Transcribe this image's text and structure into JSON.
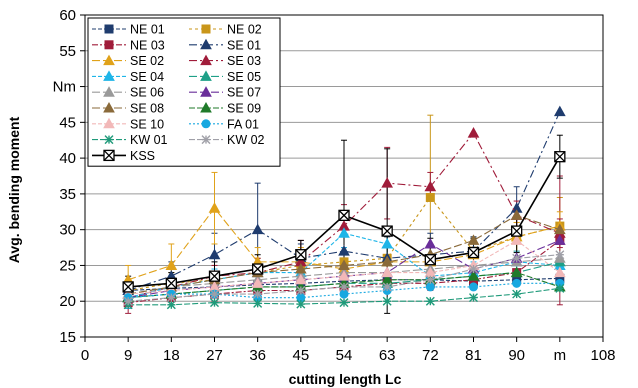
{
  "chart_data": {
    "type": "line",
    "xlabel": "cutting length Lc",
    "ylabel": "Avg. bending moment",
    "xlim": [
      0,
      108
    ],
    "ylim": [
      15,
      60
    ],
    "x_ticks": [
      "0",
      "9",
      "18",
      "27",
      "36",
      "45",
      "54",
      "63",
      "72",
      "81",
      "90",
      "m",
      "108"
    ],
    "y_ticks": [
      "15",
      "20",
      "25",
      "30",
      "35",
      "40",
      "45",
      "Nm",
      "55",
      "60"
    ],
    "grid": "horizontal",
    "legend_position": "top-left",
    "x": [
      9,
      18,
      27,
      36,
      45,
      54,
      63,
      72,
      81,
      90,
      99
    ],
    "series": [
      {
        "name": "NE 01",
        "color": "#1f3c6e",
        "marker": "square",
        "dash": "4 2",
        "values": [
          21.5,
          21.8,
          22.0,
          22.3,
          22.5,
          22.8,
          23.0,
          23.0,
          22.8,
          23.0,
          23.2
        ]
      },
      {
        "name": "NE 02",
        "color": "#c9961a",
        "marker": "square",
        "dash": "3 3",
        "values": [
          21.5,
          22.5,
          23.0,
          24.0,
          25.0,
          25.5,
          26.0,
          34.5,
          27.0,
          29.0,
          30.5
        ],
        "error": [
          1.5,
          1.5,
          2,
          2,
          2,
          2,
          3,
          11.5,
          2,
          2,
          4
        ]
      },
      {
        "name": "NE 03",
        "color": "#a01c3a",
        "marker": "square",
        "dash": "6 2 2 2",
        "values": [
          19.8,
          20.5,
          21.0,
          21.5,
          21.5,
          22.0,
          22.5,
          22.5,
          23.0,
          24.0,
          28.5
        ],
        "error": [
          1.5,
          1,
          1,
          1,
          1,
          1,
          1,
          1,
          1,
          1.5,
          9
        ]
      },
      {
        "name": "SE 01",
        "color": "#1f3c6e",
        "marker": "triangle",
        "dash": "8 3 2 3",
        "values": [
          21.5,
          23.5,
          26.5,
          30.0,
          26.0,
          27.0,
          26.0,
          26.5,
          27.0,
          33.0,
          46.5
        ],
        "error": [
          1.5,
          2,
          3,
          6.5,
          2,
          2,
          3,
          3,
          2,
          3,
          0
        ]
      },
      {
        "name": "SE 02",
        "color": "#e0a21a",
        "marker": "triangle",
        "dash": "8 3",
        "values": [
          23.0,
          25.0,
          33.0,
          25.5,
          25.5,
          24.5,
          25.5,
          25.5,
          26.5,
          29.0,
          30.5
        ],
        "error": [
          2,
          3,
          5,
          2,
          2,
          2,
          2,
          2,
          2,
          2,
          2
        ]
      },
      {
        "name": "SE 03",
        "color": "#a01c3a",
        "marker": "triangle",
        "dash": "8 3 2 3",
        "values": [
          20.5,
          22.0,
          23.5,
          24.0,
          25.5,
          30.5,
          36.5,
          36.0,
          43.5,
          32.0,
          29.5
        ],
        "error": [
          1.5,
          1.5,
          1.5,
          2,
          3,
          3,
          5,
          2,
          0,
          2,
          2
        ]
      },
      {
        "name": "SE 04",
        "color": "#1fb5e8",
        "marker": "triangle",
        "dash": "4 2",
        "values": [
          20.5,
          22.0,
          23.0,
          24.0,
          24.0,
          29.5,
          28.0,
          23.5,
          24.0,
          25.5,
          25.0
        ],
        "error": [
          1.5,
          1.5,
          1.5,
          1.5,
          1.5,
          2,
          2,
          1.5,
          1.5,
          1.5,
          1.5
        ]
      },
      {
        "name": "SE 05",
        "color": "#1fa088",
        "marker": "triangle",
        "dash": "8 3",
        "values": [
          20.5,
          21.0,
          21.5,
          22.0,
          22.0,
          22.5,
          22.5,
          23.0,
          23.5,
          24.0,
          25.5
        ]
      },
      {
        "name": "SE 06",
        "color": "#9a9a9a",
        "marker": "triangle",
        "dash": "8 3",
        "values": [
          21.0,
          22.0,
          22.5,
          23.0,
          23.5,
          24.0,
          24.0,
          24.5,
          25.0,
          25.5,
          26.0
        ]
      },
      {
        "name": "SE 07",
        "color": "#6a2e9a",
        "marker": "triangle",
        "dash": "8 3",
        "values": [
          20.5,
          21.5,
          22.0,
          22.5,
          23.0,
          23.5,
          24.0,
          28.0,
          24.5,
          26.0,
          28.5
        ]
      },
      {
        "name": "SE 08",
        "color": "#8a6a3a",
        "marker": "triangle",
        "dash": "8 3",
        "values": [
          21.0,
          22.0,
          23.0,
          24.0,
          24.5,
          25.0,
          25.5,
          26.5,
          28.5,
          32.0,
          30.0
        ]
      },
      {
        "name": "SE 09",
        "color": "#1f7a2a",
        "marker": "triangle",
        "dash": "6 2",
        "values": [
          20.5,
          21.0,
          21.5,
          22.0,
          22.0,
          22.5,
          23.0,
          23.0,
          23.5,
          24.0,
          22.0
        ]
      },
      {
        "name": "SE 10",
        "color": "#f2b8b8",
        "marker": "triangle",
        "dash": "4 2",
        "values": [
          21.0,
          21.5,
          22.0,
          22.5,
          23.0,
          23.5,
          24.0,
          24.0,
          25.0,
          28.5,
          24.0
        ]
      },
      {
        "name": "FA 01",
        "color": "#18a8e0",
        "marker": "circle",
        "dash": "2 2",
        "values": [
          20.5,
          21.0,
          21.0,
          20.5,
          20.5,
          21.0,
          21.5,
          22.0,
          22.0,
          22.5,
          22.5
        ]
      },
      {
        "name": "KW 01",
        "color": "#1f9a7a",
        "marker": "asterisk",
        "dash": "6 2",
        "values": [
          19.5,
          19.5,
          19.8,
          19.7,
          19.6,
          19.8,
          20.0,
          20.0,
          20.5,
          21.0,
          21.8
        ]
      },
      {
        "name": "KW 02",
        "color": "#a0a0a8",
        "marker": "asterisk",
        "dash": "6 2",
        "values": [
          20.0,
          20.5,
          21.0,
          21.0,
          21.5,
          22.0,
          22.0,
          23.0,
          24.5,
          26.0,
          26.5
        ]
      },
      {
        "name": "KSS",
        "color": "#000000",
        "marker": "xsquare",
        "dash": "",
        "values": [
          22.0,
          22.5,
          23.5,
          24.5,
          26.5,
          32.0,
          29.8,
          25.8,
          26.8,
          29.8,
          40.2
        ],
        "error": [
          1.5,
          1.5,
          2,
          2,
          2,
          10.5,
          11.5,
          3,
          2,
          3,
          3
        ]
      }
    ]
  }
}
